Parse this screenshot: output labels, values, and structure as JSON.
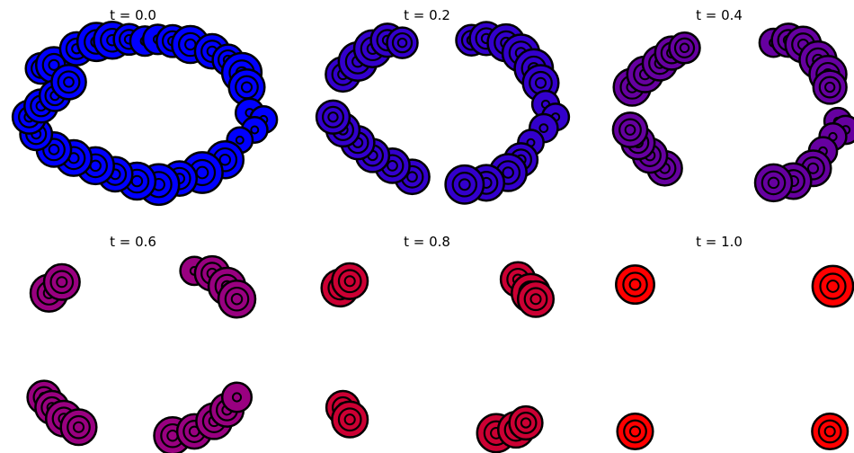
{
  "chart_data": [
    {
      "type": "scatter",
      "title": "t = 0.0",
      "t": 0.0,
      "color_start": "#0000ff",
      "color_end": "#ff0000",
      "color": "#0000ff",
      "axes": "off",
      "points": [
        [
          -0.93,
          0.62,
          1.0
        ],
        [
          -0.8,
          0.66,
          1.4
        ],
        [
          -0.57,
          0.85,
          1.2
        ],
        [
          -0.37,
          0.93,
          1.6
        ],
        [
          -0.21,
          0.95,
          1.5
        ],
        [
          -0.04,
          0.96,
          1.0
        ],
        [
          0.12,
          0.94,
          0.9
        ],
        [
          0.25,
          0.96,
          0.9
        ],
        [
          0.4,
          0.94,
          1.1
        ],
        [
          0.58,
          0.9,
          1.5
        ],
        [
          0.8,
          0.82,
          1.3
        ],
        [
          0.96,
          0.72,
          1.0
        ],
        [
          1.1,
          0.57,
          1.7
        ],
        [
          1.15,
          0.4,
          1.4
        ],
        [
          1.18,
          0.1,
          0.8
        ],
        [
          1.32,
          0.02,
          0.7
        ],
        [
          1.23,
          -0.1,
          0.6
        ],
        [
          1.08,
          -0.22,
          0.6
        ],
        [
          0.93,
          -0.45,
          1.5
        ],
        [
          0.7,
          -0.6,
          1.8
        ],
        [
          0.47,
          -0.67,
          1.3
        ],
        [
          0.26,
          -0.74,
          1.8
        ],
        [
          0.04,
          -0.7,
          1.5
        ],
        [
          -0.18,
          -0.62,
          1.3
        ],
        [
          -0.38,
          -0.52,
          1.5
        ],
        [
          -0.6,
          -0.43,
          1.4
        ],
        [
          -0.8,
          -0.33,
          1.3
        ],
        [
          -0.98,
          -0.15,
          1.1
        ],
        [
          -1.05,
          0.05,
          1.2
        ],
        [
          -0.93,
          0.18,
          1.2
        ],
        [
          -0.79,
          0.3,
          1.0
        ],
        [
          -0.65,
          0.46,
          1.3
        ]
      ]
    },
    {
      "type": "scatter",
      "title": "t = 0.2",
      "t": 0.2,
      "color": "#3300cc",
      "axes": "off",
      "points": [
        [
          -0.85,
          0.55,
          1.3
        ],
        [
          -0.7,
          0.7,
          1.6
        ],
        [
          -0.55,
          0.85,
          1.5
        ],
        [
          -0.4,
          0.95,
          1.2
        ],
        [
          -0.25,
          0.92,
          1.0
        ],
        [
          0.45,
          0.95,
          1.0
        ],
        [
          0.6,
          0.97,
          1.2
        ],
        [
          0.8,
          0.92,
          1.5
        ],
        [
          0.95,
          0.8,
          1.5
        ],
        [
          1.08,
          0.62,
          1.6
        ],
        [
          1.15,
          0.45,
          1.4
        ],
        [
          1.2,
          0.2,
          0.7
        ],
        [
          1.3,
          0.05,
          0.7
        ],
        [
          1.18,
          -0.08,
          0.8
        ],
        [
          1.05,
          -0.25,
          0.6
        ],
        [
          0.95,
          -0.45,
          1.2
        ],
        [
          0.82,
          -0.6,
          1.5
        ],
        [
          0.6,
          -0.72,
          1.4
        ],
        [
          0.38,
          -0.74,
          1.6
        ],
        [
          -0.15,
          -0.65,
          1.3
        ],
        [
          -0.35,
          -0.52,
          1.3
        ],
        [
          -0.55,
          -0.4,
          1.2
        ],
        [
          -0.7,
          -0.25,
          1.2
        ],
        [
          -0.85,
          -0.1,
          1.2
        ],
        [
          -0.95,
          0.05,
          1.2
        ]
      ]
    },
    {
      "type": "scatter",
      "title": "t = 0.4",
      "t": 0.4,
      "color": "#6600a0",
      "axes": "off",
      "points": [
        [
          -0.88,
          0.4,
          1.5
        ],
        [
          -0.75,
          0.55,
          1.4
        ],
        [
          -0.6,
          0.68,
          1.3
        ],
        [
          -0.48,
          0.8,
          1.2
        ],
        [
          -0.35,
          0.86,
          1.0
        ],
        [
          0.55,
          0.92,
          0.8
        ],
        [
          0.7,
          0.95,
          1.2
        ],
        [
          0.85,
          0.9,
          1.4
        ],
        [
          1.0,
          0.72,
          1.5
        ],
        [
          1.1,
          0.55,
          1.5
        ],
        [
          1.12,
          0.4,
          1.2
        ],
        [
          1.2,
          0.0,
          0.7
        ],
        [
          1.28,
          -0.1,
          0.8
        ],
        [
          1.15,
          -0.18,
          0.7
        ],
        [
          1.05,
          -0.35,
          0.8
        ],
        [
          0.95,
          -0.55,
          1.4
        ],
        [
          0.75,
          -0.7,
          1.4
        ],
        [
          0.55,
          -0.72,
          1.5
        ],
        [
          -0.55,
          -0.55,
          1.3
        ],
        [
          -0.7,
          -0.4,
          1.3
        ],
        [
          -0.82,
          -0.25,
          1.2
        ],
        [
          -0.9,
          -0.1,
          1.3
        ]
      ]
    },
    {
      "type": "scatter",
      "title": "t = 0.6",
      "t": 0.6,
      "color": "#990080",
      "axes": "off",
      "points": [
        [
          -0.85,
          0.62,
          1.5
        ],
        [
          -0.72,
          0.75,
          1.4
        ],
        [
          0.62,
          0.88,
          0.8
        ],
        [
          0.8,
          0.85,
          1.3
        ],
        [
          0.95,
          0.7,
          1.5
        ],
        [
          1.05,
          0.55,
          1.5
        ],
        [
          -0.9,
          -0.6,
          1.2
        ],
        [
          -0.82,
          -0.72,
          1.2
        ],
        [
          -0.7,
          -0.85,
          1.4
        ],
        [
          -0.55,
          -0.95,
          1.4
        ],
        [
          0.4,
          -1.05,
          1.5
        ],
        [
          0.62,
          -1.0,
          1.3
        ],
        [
          0.82,
          -0.88,
          1.4
        ],
        [
          0.95,
          -0.75,
          1.2
        ],
        [
          1.05,
          -0.6,
          0.9
        ]
      ]
    },
    {
      "type": "scatter",
      "title": "t = 0.8",
      "t": 0.8,
      "color": "#cc0033",
      "axes": "off",
      "points": [
        [
          -0.88,
          0.68,
          1.5
        ],
        [
          -0.78,
          0.76,
          1.4
        ],
        [
          0.92,
          0.78,
          1.3
        ],
        [
          1.05,
          0.62,
          1.6
        ],
        [
          1.1,
          0.55,
          1.4
        ],
        [
          -0.85,
          -0.72,
          1.2
        ],
        [
          -0.78,
          -0.86,
          1.4
        ],
        [
          0.7,
          -1.02,
          1.6
        ],
        [
          0.9,
          -0.98,
          1.4
        ],
        [
          1.0,
          -0.9,
          1.2
        ]
      ]
    },
    {
      "type": "scatter",
      "title": "t = 1.0",
      "t": 1.0,
      "color": "#ff0000",
      "axes": "off",
      "points": [
        [
          -0.85,
          0.72,
          1.6
        ],
        [
          1.15,
          0.7,
          1.8
        ],
        [
          -0.85,
          -1.0,
          1.4
        ],
        [
          1.12,
          -1.0,
          1.4
        ]
      ]
    }
  ]
}
